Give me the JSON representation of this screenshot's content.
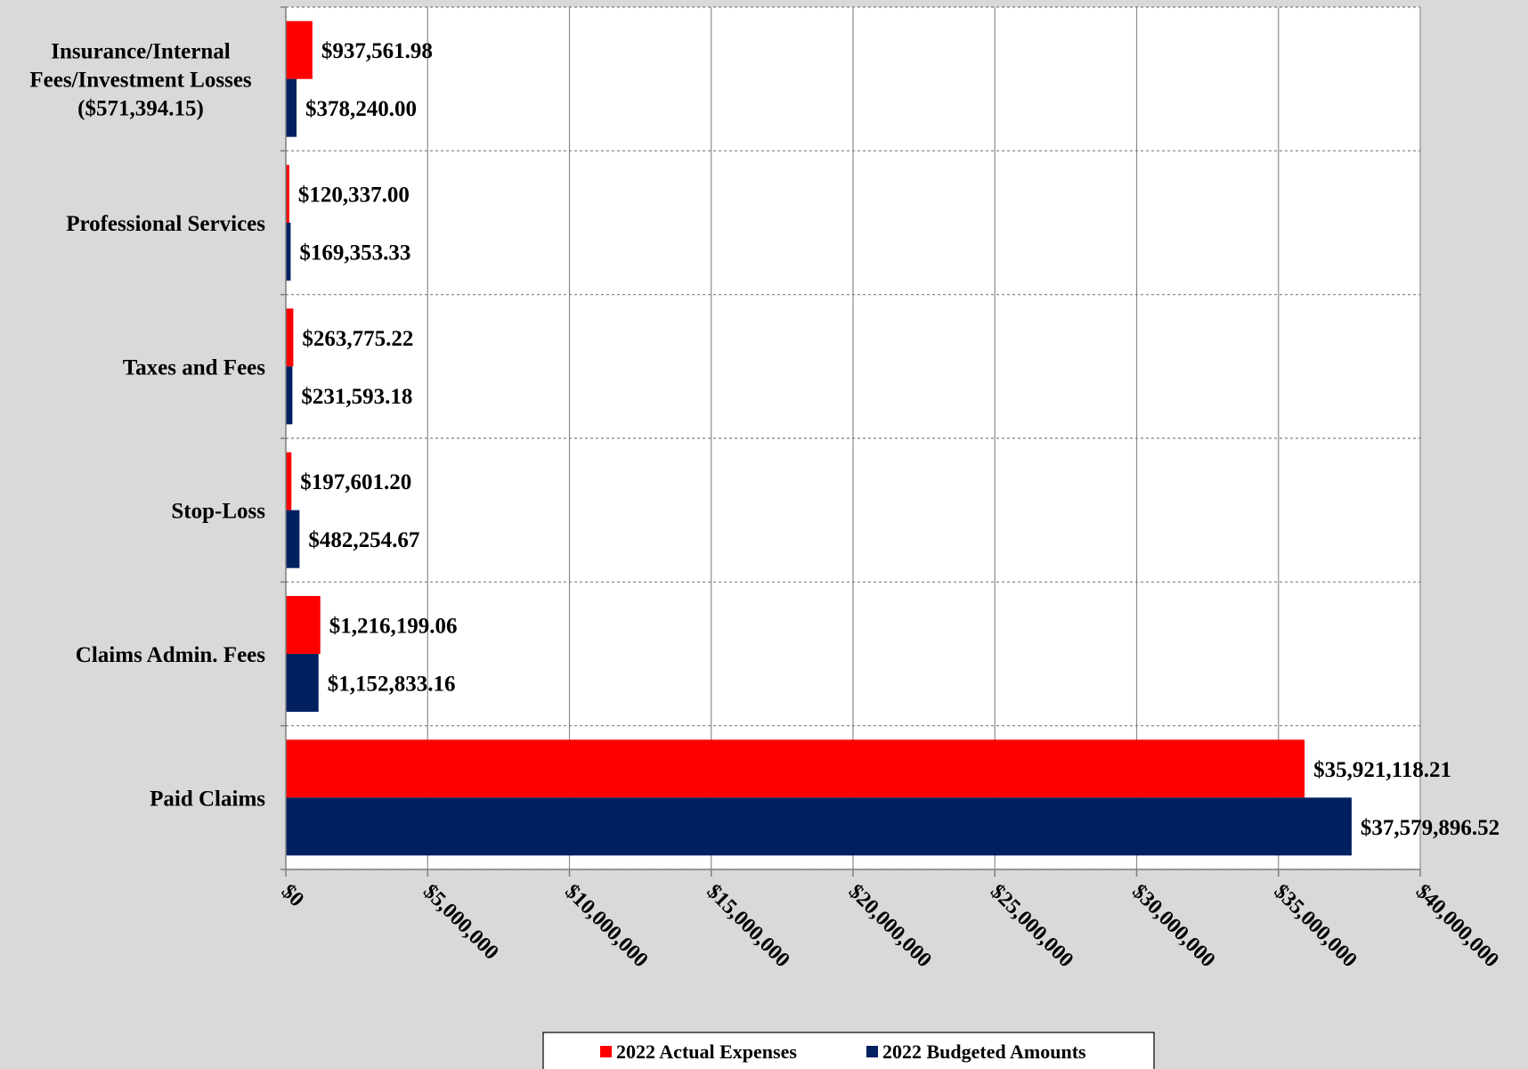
{
  "chart_data": {
    "type": "bar",
    "orientation": "horizontal",
    "categories": [
      "Insurance/Internal Fees/Investment Losses ($571,394.15)",
      "Professional Services",
      "Taxes and Fees",
      "Stop-Loss",
      "Claims Admin. Fees",
      "Paid Claims"
    ],
    "category_lines": [
      [
        "Insurance/Internal",
        "Fees/Investment Losses",
        "($571,394.15)"
      ],
      [
        "Professional Services"
      ],
      [
        "Taxes and Fees"
      ],
      [
        "Stop-Loss"
      ],
      [
        "Claims Admin. Fees"
      ],
      [
        "Paid Claims"
      ]
    ],
    "series": [
      {
        "name": "2022 Actual Expenses",
        "color": "#ff0000",
        "values": [
          937561.98,
          120337.0,
          263775.22,
          197601.2,
          1216199.06,
          35921118.21
        ],
        "labels": [
          "$937,561.98",
          "$120,337.00",
          "$263,775.22",
          "$197,601.20",
          "$1,216,199.06",
          "$35,921,118.21"
        ]
      },
      {
        "name": "2022 Budgeted Amounts",
        "color": "#002060",
        "values": [
          378240.0,
          169353.33,
          231593.18,
          482254.67,
          1152833.16,
          37579896.52
        ],
        "labels": [
          "$378,240.00",
          "$169,353.33",
          "$231,593.18",
          "$482,254.67",
          "$1,152,833.16",
          "$37,579,896.52"
        ]
      }
    ],
    "xlim": [
      0,
      40000000
    ],
    "xticks": [
      0,
      5000000,
      10000000,
      15000000,
      20000000,
      25000000,
      30000000,
      35000000,
      40000000
    ],
    "xtick_labels": [
      "$0",
      "$5,000,000",
      "$10,000,000",
      "$15,000,000",
      "$20,000,000",
      "$25,000,000",
      "$30,000,000",
      "$35,000,000",
      "$40,000,000"
    ],
    "grid": true,
    "legend_position": "bottom",
    "title": "",
    "xlabel": "",
    "ylabel": ""
  }
}
